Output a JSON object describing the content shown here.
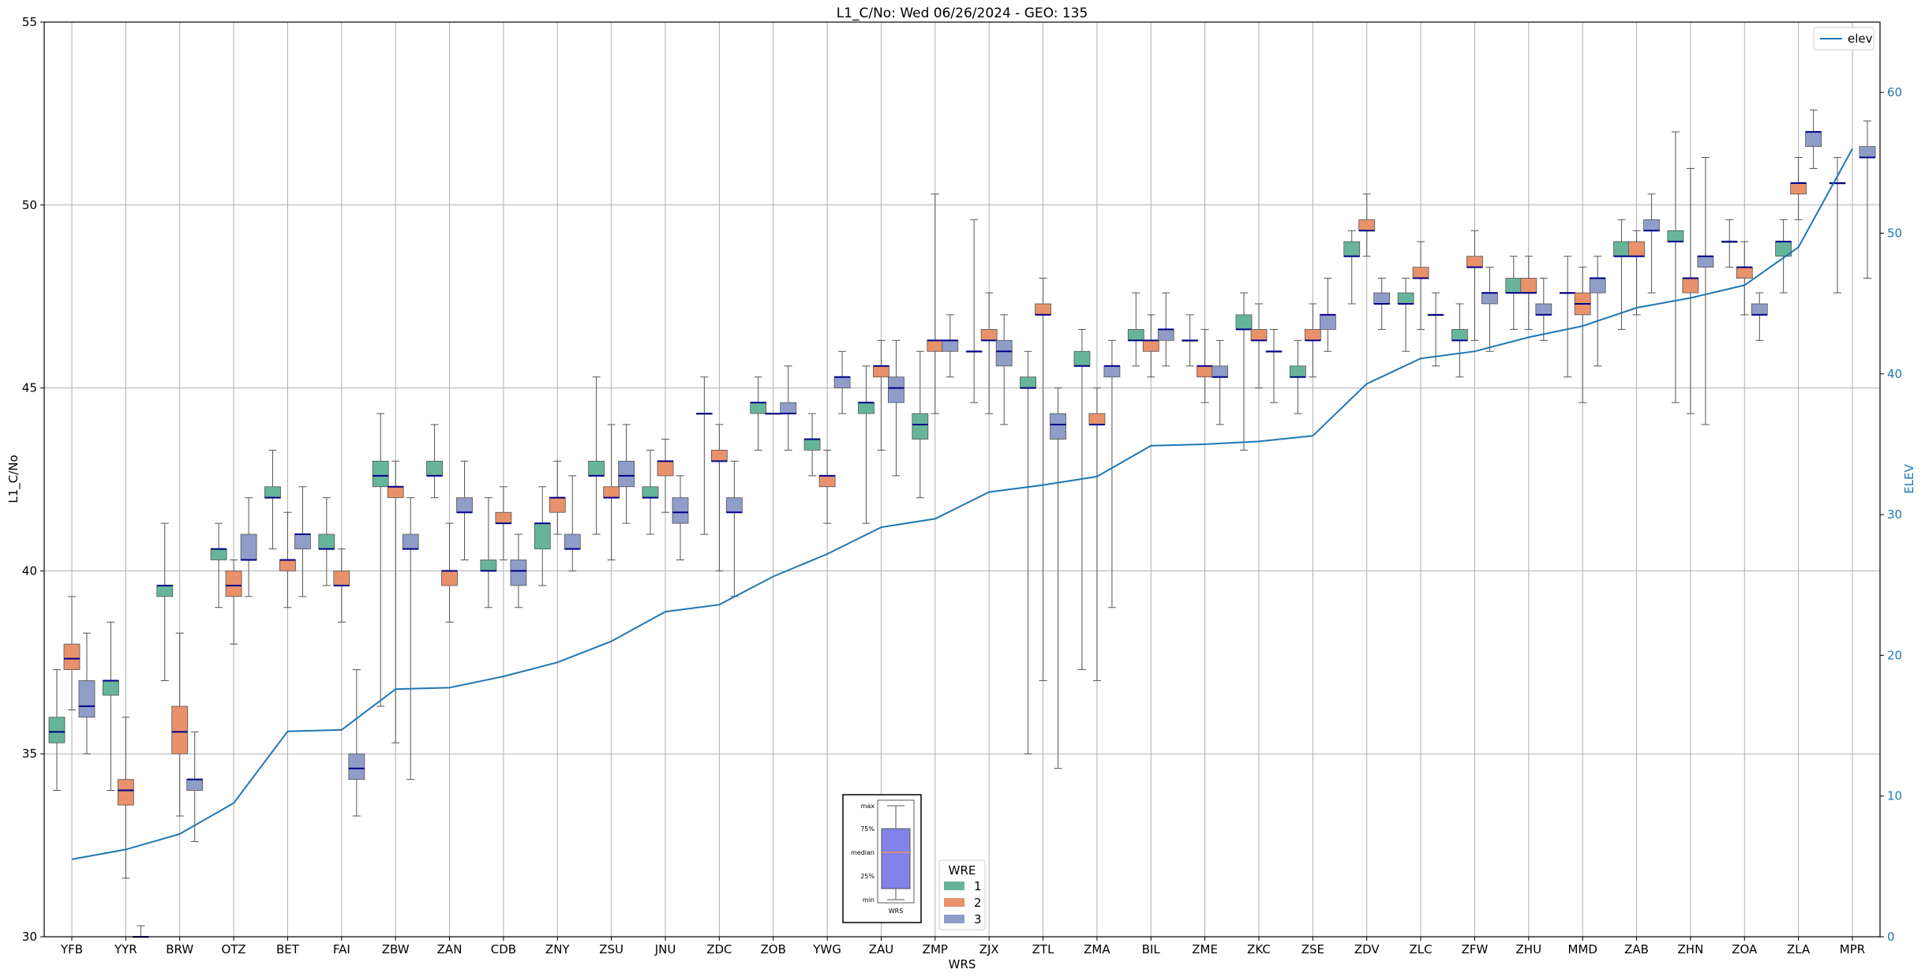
{
  "chart_data": {
    "type": "box",
    "title": "L1_C/No: Wed 06/26/2024 - GEO: 135",
    "xlabel": "WRS",
    "ylabel": "L1_C/No",
    "y2label": "ELEV",
    "ylim": [
      30,
      55
    ],
    "y2lim": [
      0,
      65
    ],
    "yticks": [
      30,
      35,
      40,
      45,
      50,
      55
    ],
    "y2ticks": [
      0,
      10,
      20,
      30,
      40,
      50,
      60
    ],
    "grid": true,
    "categories": [
      "YFB",
      "YYR",
      "BRW",
      "OTZ",
      "BET",
      "FAI",
      "ZBW",
      "ZAN",
      "CDB",
      "ZNY",
      "ZSU",
      "JNU",
      "ZDC",
      "ZOB",
      "YWG",
      "ZAU",
      "ZMP",
      "ZJX",
      "ZTL",
      "ZMA",
      "BIL",
      "ZME",
      "ZKC",
      "ZSE",
      "ZDV",
      "ZLC",
      "ZFW",
      "ZHU",
      "MMD",
      "ZAB",
      "ZHN",
      "ZOA",
      "ZLA",
      "MPR"
    ],
    "colors": {
      "1": "#66b59a",
      "2": "#e8916a",
      "3": "#8f9dc8",
      "elev": "#1f77b4",
      "median": "#00008b"
    },
    "wre_legend": {
      "title": "WRE",
      "entries": [
        "1",
        "2",
        "3"
      ]
    },
    "elev_legend": "elev",
    "key_labels": [
      "max",
      "75%",
      "median",
      "25%",
      "min",
      "WRS"
    ],
    "elevation": [
      5.5,
      6.2,
      7.3,
      9.5,
      14.6,
      14.7,
      17.6,
      17.7,
      18.5,
      19.5,
      21.0,
      23.1,
      23.6,
      25.6,
      27.2,
      29.1,
      29.7,
      31.6,
      32.1,
      32.7,
      34.9,
      35.0,
      35.2,
      35.6,
      39.3,
      41.1,
      41.6,
      42.6,
      43.4,
      44.7,
      45.4,
      46.3,
      49.0,
      56.0
    ],
    "boxes": [
      {
        "station": "YFB",
        "wre": 1,
        "min": 34.0,
        "q1": 35.3,
        "median": 35.6,
        "q3": 36.0,
        "max": 37.3
      },
      {
        "station": "YFB",
        "wre": 2,
        "min": 36.2,
        "q1": 37.3,
        "median": 37.6,
        "q3": 38.0,
        "max": 39.3
      },
      {
        "station": "YFB",
        "wre": 3,
        "min": 35.0,
        "q1": 36.0,
        "median": 36.3,
        "q3": 37.0,
        "max": 38.3
      },
      {
        "station": "YYR",
        "wre": 1,
        "min": 34.0,
        "q1": 36.6,
        "median": 37.0,
        "q3": 37.0,
        "max": 38.6
      },
      {
        "station": "YYR",
        "wre": 2,
        "min": 31.6,
        "q1": 33.6,
        "median": 34.0,
        "q3": 34.3,
        "max": 36.0
      },
      {
        "station": "YYR",
        "wre": 3,
        "min": 30.0,
        "q1": 30.0,
        "median": 30.0,
        "q3": 30.0,
        "max": 30.3
      },
      {
        "station": "BRW",
        "wre": 1,
        "min": 37.0,
        "q1": 39.3,
        "median": 39.6,
        "q3": 39.6,
        "max": 41.3
      },
      {
        "station": "BRW",
        "wre": 2,
        "min": 33.3,
        "q1": 35.0,
        "median": 35.6,
        "q3": 36.3,
        "max": 38.3
      },
      {
        "station": "BRW",
        "wre": 3,
        "min": 32.6,
        "q1": 34.0,
        "median": 34.3,
        "q3": 34.3,
        "max": 35.6
      },
      {
        "station": "OTZ",
        "wre": 1,
        "min": 39.0,
        "q1": 40.3,
        "median": 40.6,
        "q3": 40.6,
        "max": 41.3
      },
      {
        "station": "OTZ",
        "wre": 2,
        "min": 38.0,
        "q1": 39.3,
        "median": 39.6,
        "q3": 40.0,
        "max": 40.3
      },
      {
        "station": "OTZ",
        "wre": 3,
        "min": 39.3,
        "q1": 40.3,
        "median": 40.3,
        "q3": 41.0,
        "max": 42.0
      },
      {
        "station": "BET",
        "wre": 1,
        "min": 40.6,
        "q1": 42.0,
        "median": 42.0,
        "q3": 42.3,
        "max": 43.3
      },
      {
        "station": "BET",
        "wre": 2,
        "min": 39.0,
        "q1": 40.0,
        "median": 40.3,
        "q3": 40.3,
        "max": 41.6
      },
      {
        "station": "BET",
        "wre": 3,
        "min": 39.3,
        "q1": 40.6,
        "median": 41.0,
        "q3": 41.0,
        "max": 42.3
      },
      {
        "station": "FAI",
        "wre": 1,
        "min": 39.6,
        "q1": 40.6,
        "median": 40.6,
        "q3": 41.0,
        "max": 42.0
      },
      {
        "station": "FAI",
        "wre": 2,
        "min": 38.6,
        "q1": 39.6,
        "median": 39.6,
        "q3": 40.0,
        "max": 40.6
      },
      {
        "station": "FAI",
        "wre": 3,
        "min": 33.3,
        "q1": 34.3,
        "median": 34.6,
        "q3": 35.0,
        "max": 37.3
      },
      {
        "station": "ZBW",
        "wre": 1,
        "min": 36.3,
        "q1": 42.3,
        "median": 42.6,
        "q3": 43.0,
        "max": 44.3
      },
      {
        "station": "ZBW",
        "wre": 2,
        "min": 35.3,
        "q1": 42.0,
        "median": 42.3,
        "q3": 42.3,
        "max": 43.0
      },
      {
        "station": "ZBW",
        "wre": 3,
        "min": 34.3,
        "q1": 40.6,
        "median": 40.6,
        "q3": 41.0,
        "max": 42.0
      },
      {
        "station": "ZAN",
        "wre": 1,
        "min": 42.0,
        "q1": 42.6,
        "median": 42.6,
        "q3": 43.0,
        "max": 44.0
      },
      {
        "station": "ZAN",
        "wre": 2,
        "min": 38.6,
        "q1": 39.6,
        "median": 40.0,
        "q3": 40.0,
        "max": 41.3
      },
      {
        "station": "ZAN",
        "wre": 3,
        "min": 40.3,
        "q1": 41.6,
        "median": 41.6,
        "q3": 42.0,
        "max": 43.0
      },
      {
        "station": "CDB",
        "wre": 1,
        "min": 39.0,
        "q1": 40.0,
        "median": 40.0,
        "q3": 40.3,
        "max": 42.0
      },
      {
        "station": "CDB",
        "wre": 2,
        "min": 40.3,
        "q1": 41.3,
        "median": 41.3,
        "q3": 41.6,
        "max": 42.3
      },
      {
        "station": "CDB",
        "wre": 3,
        "min": 39.0,
        "q1": 39.6,
        "median": 40.0,
        "q3": 40.3,
        "max": 41.0
      },
      {
        "station": "ZNY",
        "wre": 1,
        "min": 39.6,
        "q1": 40.6,
        "median": 41.3,
        "q3": 41.3,
        "max": 42.3
      },
      {
        "station": "ZNY",
        "wre": 2,
        "min": 41.0,
        "q1": 41.6,
        "median": 42.0,
        "q3": 42.0,
        "max": 43.0
      },
      {
        "station": "ZNY",
        "wre": 3,
        "min": 40.0,
        "q1": 40.6,
        "median": 40.6,
        "q3": 41.0,
        "max": 42.6
      },
      {
        "station": "ZSU",
        "wre": 1,
        "min": 41.0,
        "q1": 42.6,
        "median": 42.6,
        "q3": 43.0,
        "max": 45.3
      },
      {
        "station": "ZSU",
        "wre": 2,
        "min": 40.3,
        "q1": 42.0,
        "median": 42.0,
        "q3": 42.3,
        "max": 44.0
      },
      {
        "station": "ZSU",
        "wre": 3,
        "min": 41.3,
        "q1": 42.3,
        "median": 42.6,
        "q3": 43.0,
        "max": 44.0
      },
      {
        "station": "JNU",
        "wre": 1,
        "min": 41.0,
        "q1": 42.0,
        "median": 42.0,
        "q3": 42.3,
        "max": 43.3
      },
      {
        "station": "JNU",
        "wre": 2,
        "min": 41.6,
        "q1": 42.6,
        "median": 43.0,
        "q3": 43.0,
        "max": 43.6
      },
      {
        "station": "JNU",
        "wre": 3,
        "min": 40.3,
        "q1": 41.3,
        "median": 41.6,
        "q3": 42.0,
        "max": 42.6
      },
      {
        "station": "ZDC",
        "wre": 1,
        "min": 41.0,
        "q1": 44.3,
        "median": 44.3,
        "q3": 44.3,
        "max": 45.3
      },
      {
        "station": "ZDC",
        "wre": 2,
        "min": 40.0,
        "q1": 43.0,
        "median": 43.0,
        "q3": 43.3,
        "max": 44.0
      },
      {
        "station": "ZDC",
        "wre": 3,
        "min": 39.3,
        "q1": 41.6,
        "median": 41.6,
        "q3": 42.0,
        "max": 43.0
      },
      {
        "station": "ZOB",
        "wre": 1,
        "min": 43.3,
        "q1": 44.3,
        "median": 44.6,
        "q3": 44.6,
        "max": 45.3
      },
      {
        "station": "ZOB",
        "wre": 2,
        "min": 44.3,
        "q1": 44.3,
        "median": 44.3,
        "q3": 44.3,
        "max": 44.3
      },
      {
        "station": "ZOB",
        "wre": 3,
        "min": 43.3,
        "q1": 44.3,
        "median": 44.3,
        "q3": 44.6,
        "max": 45.6
      },
      {
        "station": "YWG",
        "wre": 1,
        "min": 42.6,
        "q1": 43.3,
        "median": 43.6,
        "q3": 43.6,
        "max": 44.3
      },
      {
        "station": "YWG",
        "wre": 2,
        "min": 41.3,
        "q1": 42.3,
        "median": 42.6,
        "q3": 42.6,
        "max": 43.3
      },
      {
        "station": "YWG",
        "wre": 3,
        "min": 44.3,
        "q1": 45.0,
        "median": 45.3,
        "q3": 45.3,
        "max": 46.0
      },
      {
        "station": "ZAU",
        "wre": 1,
        "min": 41.3,
        "q1": 44.3,
        "median": 44.6,
        "q3": 44.6,
        "max": 45.6
      },
      {
        "station": "ZAU",
        "wre": 2,
        "min": 43.3,
        "q1": 45.3,
        "median": 45.6,
        "q3": 45.6,
        "max": 46.3
      },
      {
        "station": "ZAU",
        "wre": 3,
        "min": 42.6,
        "q1": 44.6,
        "median": 45.0,
        "q3": 45.3,
        "max": 46.3
      },
      {
        "station": "ZMP",
        "wre": 1,
        "min": 42.0,
        "q1": 43.6,
        "median": 44.0,
        "q3": 44.3,
        "max": 46.0
      },
      {
        "station": "ZMP",
        "wre": 2,
        "min": 44.3,
        "q1": 46.0,
        "median": 46.3,
        "q3": 46.3,
        "max": 50.3
      },
      {
        "station": "ZMP",
        "wre": 3,
        "min": 45.3,
        "q1": 46.0,
        "median": 46.3,
        "q3": 46.3,
        "max": 47.0
      },
      {
        "station": "ZJX",
        "wre": 1,
        "min": 44.6,
        "q1": 46.0,
        "median": 46.0,
        "q3": 46.0,
        "max": 49.6
      },
      {
        "station": "ZJX",
        "wre": 2,
        "min": 44.3,
        "q1": 46.3,
        "median": 46.3,
        "q3": 46.6,
        "max": 47.6
      },
      {
        "station": "ZJX",
        "wre": 3,
        "min": 44.0,
        "q1": 45.6,
        "median": 46.0,
        "q3": 46.3,
        "max": 47.0
      },
      {
        "station": "ZTL",
        "wre": 1,
        "min": 35.0,
        "q1": 45.0,
        "median": 45.0,
        "q3": 45.3,
        "max": 46.0
      },
      {
        "station": "ZTL",
        "wre": 2,
        "min": 37.0,
        "q1": 47.0,
        "median": 47.0,
        "q3": 47.3,
        "max": 48.0
      },
      {
        "station": "ZTL",
        "wre": 3,
        "min": 34.6,
        "q1": 43.6,
        "median": 44.0,
        "q3": 44.3,
        "max": 45.0
      },
      {
        "station": "ZMA",
        "wre": 1,
        "min": 37.3,
        "q1": 45.6,
        "median": 45.6,
        "q3": 46.0,
        "max": 46.6
      },
      {
        "station": "ZMA",
        "wre": 2,
        "min": 37.0,
        "q1": 44.0,
        "median": 44.0,
        "q3": 44.3,
        "max": 45.0
      },
      {
        "station": "ZMA",
        "wre": 3,
        "min": 39.0,
        "q1": 45.3,
        "median": 45.6,
        "q3": 45.6,
        "max": 46.3
      },
      {
        "station": "BIL",
        "wre": 1,
        "min": 45.6,
        "q1": 46.3,
        "median": 46.3,
        "q3": 46.6,
        "max": 47.6
      },
      {
        "station": "BIL",
        "wre": 2,
        "min": 45.3,
        "q1": 46.0,
        "median": 46.3,
        "q3": 46.3,
        "max": 47.0
      },
      {
        "station": "BIL",
        "wre": 3,
        "min": 45.6,
        "q1": 46.3,
        "median": 46.6,
        "q3": 46.6,
        "max": 47.6
      },
      {
        "station": "ZME",
        "wre": 1,
        "min": 45.6,
        "q1": 46.3,
        "median": 46.3,
        "q3": 46.3,
        "max": 47.0
      },
      {
        "station": "ZME",
        "wre": 2,
        "min": 44.6,
        "q1": 45.3,
        "median": 45.6,
        "q3": 45.6,
        "max": 46.6
      },
      {
        "station": "ZME",
        "wre": 3,
        "min": 44.0,
        "q1": 45.3,
        "median": 45.3,
        "q3": 45.6,
        "max": 46.3
      },
      {
        "station": "ZKC",
        "wre": 1,
        "min": 43.3,
        "q1": 46.6,
        "median": 46.6,
        "q3": 47.0,
        "max": 47.6
      },
      {
        "station": "ZKC",
        "wre": 2,
        "min": 45.0,
        "q1": 46.3,
        "median": 46.3,
        "q3": 46.6,
        "max": 47.3
      },
      {
        "station": "ZKC",
        "wre": 3,
        "min": 44.6,
        "q1": 46.0,
        "median": 46.0,
        "q3": 46.0,
        "max": 46.6
      },
      {
        "station": "ZSE",
        "wre": 1,
        "min": 44.3,
        "q1": 45.3,
        "median": 45.3,
        "q3": 45.6,
        "max": 46.3
      },
      {
        "station": "ZSE",
        "wre": 2,
        "min": 45.3,
        "q1": 46.3,
        "median": 46.3,
        "q3": 46.6,
        "max": 47.3
      },
      {
        "station": "ZSE",
        "wre": 3,
        "min": 46.0,
        "q1": 46.6,
        "median": 47.0,
        "q3": 47.0,
        "max": 48.0
      },
      {
        "station": "ZDV",
        "wre": 1,
        "min": 47.3,
        "q1": 48.6,
        "median": 48.6,
        "q3": 49.0,
        "max": 49.3
      },
      {
        "station": "ZDV",
        "wre": 2,
        "min": 48.6,
        "q1": 49.3,
        "median": 49.3,
        "q3": 49.6,
        "max": 50.3
      },
      {
        "station": "ZDV",
        "wre": 3,
        "min": 46.6,
        "q1": 47.3,
        "median": 47.3,
        "q3": 47.6,
        "max": 48.0
      },
      {
        "station": "ZLC",
        "wre": 1,
        "min": 46.0,
        "q1": 47.3,
        "median": 47.3,
        "q3": 47.6,
        "max": 48.0
      },
      {
        "station": "ZLC",
        "wre": 2,
        "min": 46.6,
        "q1": 48.0,
        "median": 48.0,
        "q3": 48.3,
        "max": 49.0
      },
      {
        "station": "ZLC",
        "wre": 3,
        "min": 45.6,
        "q1": 47.0,
        "median": 47.0,
        "q3": 47.0,
        "max": 47.6
      },
      {
        "station": "ZFW",
        "wre": 1,
        "min": 45.3,
        "q1": 46.3,
        "median": 46.3,
        "q3": 46.6,
        "max": 47.3
      },
      {
        "station": "ZFW",
        "wre": 2,
        "min": 46.3,
        "q1": 48.3,
        "median": 48.3,
        "q3": 48.6,
        "max": 49.3
      },
      {
        "station": "ZFW",
        "wre": 3,
        "min": 46.0,
        "q1": 47.3,
        "median": 47.6,
        "q3": 47.6,
        "max": 48.3
      },
      {
        "station": "ZHU",
        "wre": 1,
        "min": 46.6,
        "q1": 47.6,
        "median": 47.6,
        "q3": 48.0,
        "max": 48.6
      },
      {
        "station": "ZHU",
        "wre": 2,
        "min": 46.6,
        "q1": 47.6,
        "median": 47.6,
        "q3": 48.0,
        "max": 48.6
      },
      {
        "station": "ZHU",
        "wre": 3,
        "min": 46.3,
        "q1": 47.0,
        "median": 47.0,
        "q3": 47.3,
        "max": 48.0
      },
      {
        "station": "MMD",
        "wre": 1,
        "min": 45.3,
        "q1": 47.6,
        "median": 47.6,
        "q3": 47.6,
        "max": 48.6
      },
      {
        "station": "MMD",
        "wre": 2,
        "min": 44.6,
        "q1": 47.0,
        "median": 47.3,
        "q3": 47.6,
        "max": 48.3
      },
      {
        "station": "MMD",
        "wre": 3,
        "min": 45.6,
        "q1": 47.6,
        "median": 48.0,
        "q3": 48.0,
        "max": 48.6
      },
      {
        "station": "ZAB",
        "wre": 1,
        "min": 46.6,
        "q1": 48.6,
        "median": 48.6,
        "q3": 49.0,
        "max": 49.6
      },
      {
        "station": "ZAB",
        "wre": 2,
        "min": 47.0,
        "q1": 48.6,
        "median": 48.6,
        "q3": 49.0,
        "max": 49.3
      },
      {
        "station": "ZAB",
        "wre": 3,
        "min": 47.6,
        "q1": 49.3,
        "median": 49.3,
        "q3": 49.6,
        "max": 50.3
      },
      {
        "station": "ZHN",
        "wre": 1,
        "min": 44.6,
        "q1": 49.0,
        "median": 49.0,
        "q3": 49.3,
        "max": 52.0
      },
      {
        "station": "ZHN",
        "wre": 2,
        "min": 44.3,
        "q1": 47.6,
        "median": 48.0,
        "q3": 48.0,
        "max": 51.0
      },
      {
        "station": "ZHN",
        "wre": 3,
        "min": 44.0,
        "q1": 48.3,
        "median": 48.6,
        "q3": 48.6,
        "max": 51.3
      },
      {
        "station": "ZOA",
        "wre": 1,
        "min": 48.3,
        "q1": 49.0,
        "median": 49.0,
        "q3": 49.0,
        "max": 49.6
      },
      {
        "station": "ZOA",
        "wre": 2,
        "min": 47.0,
        "q1": 48.0,
        "median": 48.3,
        "q3": 48.3,
        "max": 49.0
      },
      {
        "station": "ZOA",
        "wre": 3,
        "min": 46.3,
        "q1": 47.0,
        "median": 47.0,
        "q3": 47.3,
        "max": 47.6
      },
      {
        "station": "ZLA",
        "wre": 1,
        "min": 47.6,
        "q1": 48.6,
        "median": 49.0,
        "q3": 49.0,
        "max": 49.6
      },
      {
        "station": "ZLA",
        "wre": 2,
        "min": 49.6,
        "q1": 50.3,
        "median": 50.6,
        "q3": 50.6,
        "max": 51.3
      },
      {
        "station": "ZLA",
        "wre": 3,
        "min": 51.0,
        "q1": 51.6,
        "median": 52.0,
        "q3": 52.0,
        "max": 52.6
      },
      {
        "station": "MPR",
        "wre": 1,
        "min": 47.6,
        "q1": 50.6,
        "median": 50.6,
        "q3": 50.6,
        "max": 51.3
      },
      {
        "station": "MPR",
        "wre": 3,
        "min": 48.0,
        "q1": 51.3,
        "median": 51.3,
        "q3": 51.6,
        "max": 52.3
      }
    ]
  }
}
